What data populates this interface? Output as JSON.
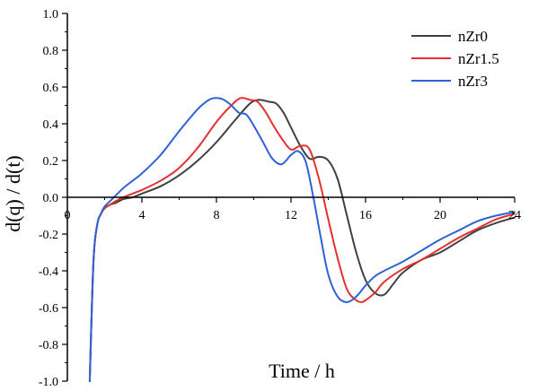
{
  "chart_data": {
    "type": "line",
    "title": "",
    "xlabel": "Time / h",
    "ylabel": "d(q) / d(t)",
    "xlim": [
      0,
      24
    ],
    "ylim": [
      -1.0,
      1.0
    ],
    "xticks": [
      0,
      4,
      8,
      12,
      16,
      20,
      24
    ],
    "yticks": [
      1.0,
      0.8,
      0.6,
      0.4,
      0.2,
      0.0,
      -0.2,
      -0.4,
      -0.6,
      -0.8,
      -1.0
    ],
    "xtick_labels": [
      "0",
      "4",
      "8",
      "12",
      "16",
      "20",
      "24"
    ],
    "ytick_labels": [
      "1.0",
      "0.8",
      "0.6",
      "0.4",
      "0.2",
      "0.0",
      "-0.2",
      "-0.4",
      "-0.6",
      "-0.8",
      "-1.0"
    ],
    "grid": false,
    "legend_position": "top-right",
    "series": [
      {
        "name": "nZr0",
        "color": "#404040",
        "x": [
          1.2,
          1.4,
          1.6,
          1.8,
          2.0,
          2.3,
          2.6,
          3.0,
          3.5,
          4.0,
          5.0,
          6.0,
          7.0,
          8.0,
          9.0,
          9.8,
          10.3,
          10.8,
          11.2,
          11.6,
          12.0,
          12.5,
          13.0,
          13.5,
          14.0,
          14.5,
          15.0,
          15.5,
          16.0,
          16.5,
          17.0,
          17.5,
          18.0,
          19.0,
          20.0,
          21.0,
          22.0,
          23.0,
          24.0
        ],
        "y": [
          -1.0,
          -0.35,
          -0.15,
          -0.09,
          -0.06,
          -0.04,
          -0.03,
          -0.01,
          0.0,
          0.02,
          0.06,
          0.12,
          0.2,
          0.3,
          0.42,
          0.51,
          0.53,
          0.52,
          0.51,
          0.46,
          0.38,
          0.28,
          0.21,
          0.22,
          0.2,
          0.1,
          -0.1,
          -0.3,
          -0.45,
          -0.52,
          -0.53,
          -0.47,
          -0.41,
          -0.34,
          -0.3,
          -0.24,
          -0.18,
          -0.14,
          -0.11
        ]
      },
      {
        "name": "nZr1.5",
        "color": "#e53030",
        "x": [
          1.2,
          1.4,
          1.6,
          1.8,
          2.0,
          2.3,
          2.6,
          3.0,
          3.5,
          4.0,
          5.0,
          6.0,
          7.0,
          8.0,
          8.8,
          9.3,
          9.8,
          10.2,
          10.6,
          11.0,
          11.5,
          12.0,
          12.5,
          13.0,
          13.5,
          14.0,
          14.5,
          15.0,
          15.5,
          15.8,
          16.0,
          16.5,
          17.0,
          18.0,
          19.0,
          20.0,
          21.0,
          22.0,
          23.0,
          24.0
        ],
        "y": [
          -1.0,
          -0.35,
          -0.15,
          -0.09,
          -0.06,
          -0.04,
          -0.02,
          0.0,
          0.02,
          0.04,
          0.09,
          0.16,
          0.27,
          0.41,
          0.5,
          0.54,
          0.53,
          0.52,
          0.47,
          0.4,
          0.32,
          0.26,
          0.28,
          0.26,
          0.1,
          -0.12,
          -0.33,
          -0.5,
          -0.56,
          -0.57,
          -0.56,
          -0.52,
          -0.46,
          -0.39,
          -0.34,
          -0.28,
          -0.22,
          -0.17,
          -0.12,
          -0.09
        ]
      },
      {
        "name": "nZr3",
        "color": "#2e62d6",
        "x": [
          1.2,
          1.4,
          1.6,
          1.8,
          2.0,
          2.3,
          2.6,
          3.0,
          3.5,
          4.0,
          5.0,
          6.0,
          7.0,
          7.6,
          8.0,
          8.4,
          8.8,
          9.2,
          9.6,
          10.0,
          10.5,
          11.0,
          11.5,
          12.0,
          12.4,
          12.8,
          13.2,
          13.6,
          14.0,
          14.5,
          15.0,
          15.5,
          16.0,
          16.5,
          17.0,
          18.0,
          19.0,
          20.0,
          21.0,
          22.0,
          23.0,
          24.0
        ],
        "y": [
          -1.0,
          -0.35,
          -0.15,
          -0.09,
          -0.05,
          -0.02,
          0.01,
          0.05,
          0.09,
          0.13,
          0.23,
          0.36,
          0.48,
          0.53,
          0.54,
          0.53,
          0.5,
          0.46,
          0.45,
          0.39,
          0.3,
          0.21,
          0.18,
          0.23,
          0.25,
          0.19,
          0.0,
          -0.22,
          -0.42,
          -0.54,
          -0.57,
          -0.54,
          -0.48,
          -0.43,
          -0.4,
          -0.35,
          -0.29,
          -0.23,
          -0.18,
          -0.13,
          -0.1,
          -0.08
        ]
      }
    ]
  }
}
